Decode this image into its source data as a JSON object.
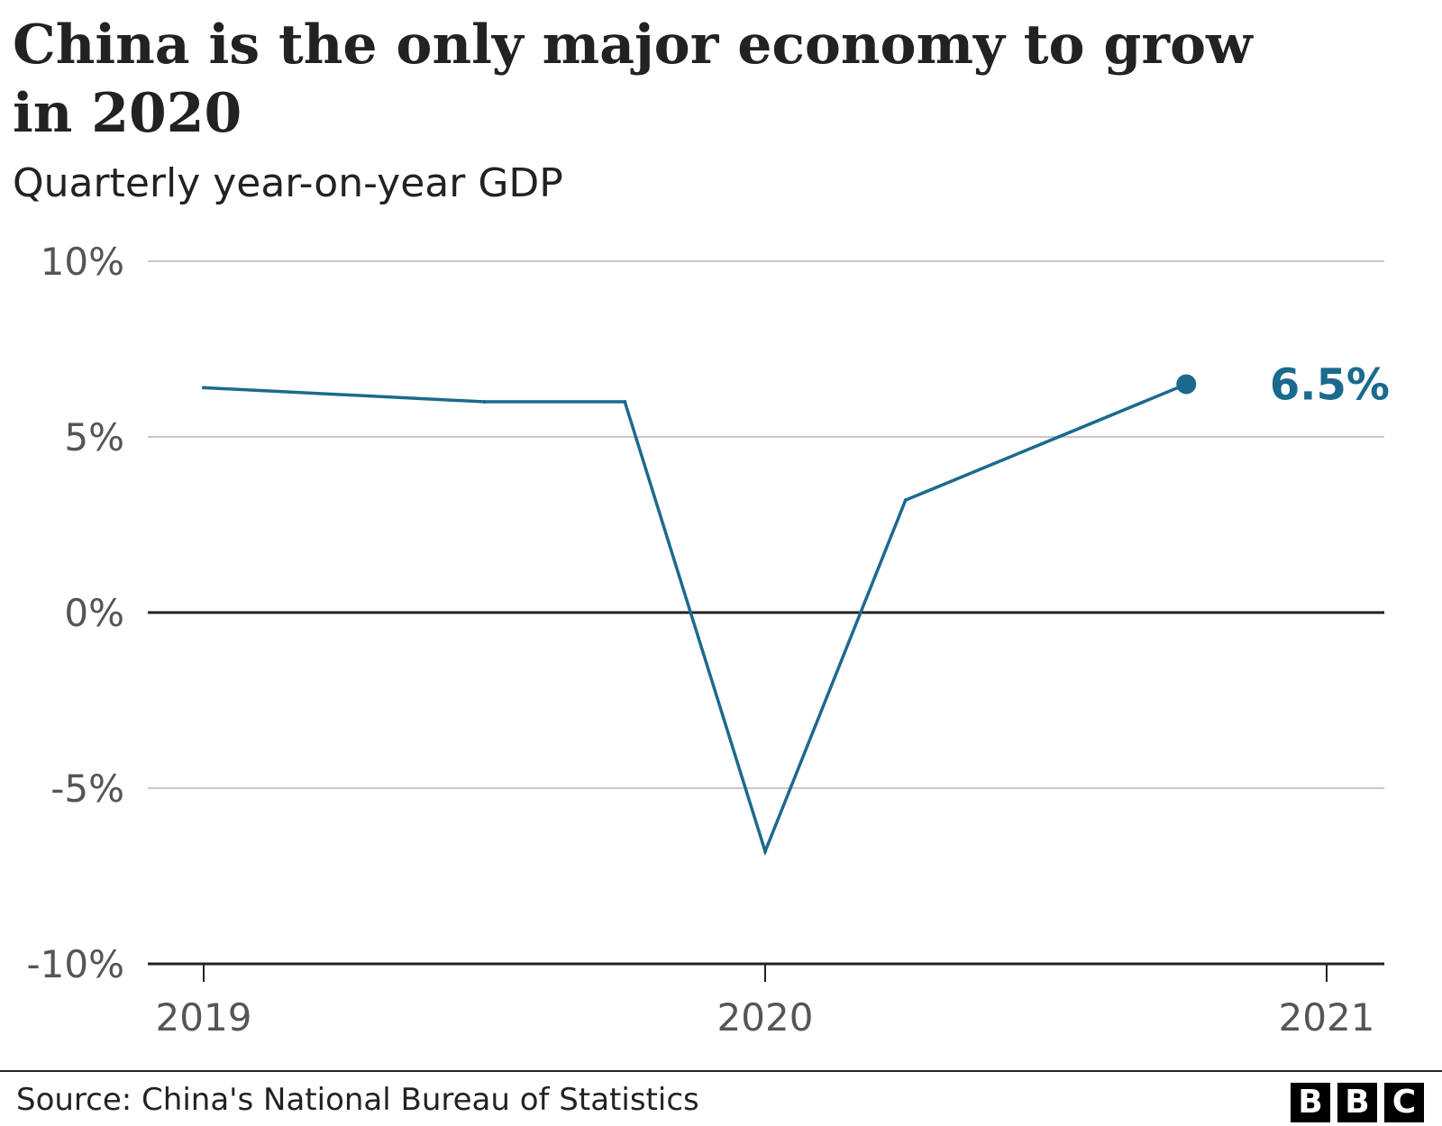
{
  "header": {
    "title": "China is the only major economy to grow in 2020",
    "subtitle": "Quarterly year-on-year GDP"
  },
  "footer": {
    "source": "Source: China's National Bureau of Statistics",
    "logo_letters": [
      "B",
      "B",
      "C"
    ]
  },
  "colors": {
    "series": "#1b6a8d",
    "grid": "#c8c8c8",
    "axis": "#222222",
    "tick_text": "#555555"
  },
  "chart_data": {
    "type": "line",
    "title": "China is the only major economy to grow in 2020",
    "subtitle": "Quarterly year-on-year GDP",
    "xlabel": "",
    "ylabel": "",
    "x_ticks": [
      2019,
      2020,
      2021
    ],
    "xlim": [
      2019,
      2021.2
    ],
    "ylim": [
      -10,
      10
    ],
    "y_ticks": [
      -10,
      -5,
      0,
      5,
      10
    ],
    "y_tick_labels": [
      "-10%",
      "-5%",
      "0%",
      "5%",
      "10%"
    ],
    "grid": true,
    "series": [
      {
        "x": [
          2019.0,
          2019.5,
          2019.75,
          2020.0,
          2020.25,
          2020.75
        ],
        "values": [
          6.4,
          6.0,
          6.0,
          -6.8,
          3.2,
          6.5
        ]
      }
    ],
    "annotation": {
      "text": "6.5%",
      "x": 2020.75,
      "y": 6.5
    }
  }
}
